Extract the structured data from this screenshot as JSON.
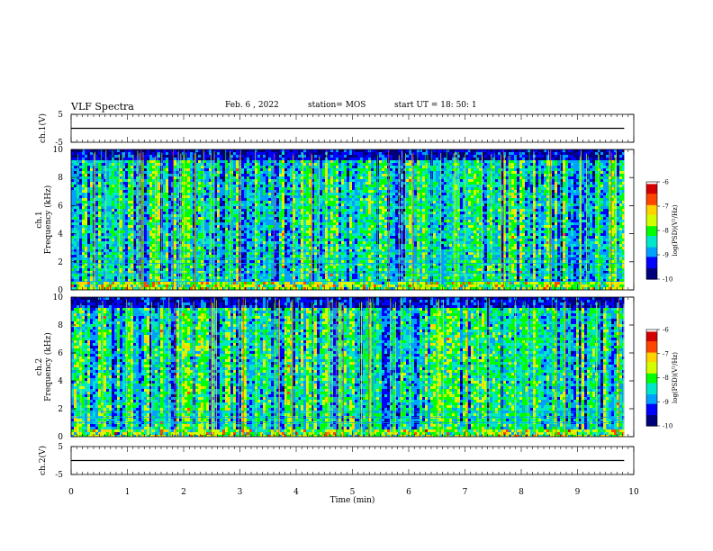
{
  "header": {
    "title": "VLF Spectra",
    "date": "Feb. 6 , 2022",
    "station": "station= MOS",
    "start_ut": "start  UT  =   18: 50: 1"
  },
  "colors": {
    "background_band": "#000000",
    "colormap": [
      "#00007a",
      "#0000ff",
      "#00a0ff",
      "#00e6c8",
      "#00ff00",
      "#d2ff00",
      "#ffd200",
      "#ff4600",
      "#d20000",
      "#ffffff"
    ]
  },
  "chart_data": [
    {
      "type": "line",
      "name": "ch1-waveform",
      "ylabel": "ch.1(V)",
      "ylim": [
        -5,
        5
      ],
      "yticks": [
        "5",
        "-5"
      ],
      "x": [
        0,
        9.83
      ],
      "y": [
        0,
        0
      ],
      "xlim": [
        0,
        10
      ]
    },
    {
      "type": "heatmap",
      "name": "ch1-spectrogram",
      "ylabel": "ch.1\nFrequency (kHz)",
      "ylim": [
        0,
        10
      ],
      "yticks": [
        "0",
        "2",
        "4",
        "6",
        "8",
        "10"
      ],
      "xlim": [
        0,
        10
      ],
      "x_extent": [
        0,
        9.83
      ],
      "colorbar": {
        "label": "log(PSD)(V²/Hz)",
        "range": [
          -10,
          -6
        ],
        "ticks": [
          "-6",
          "-7",
          "-8",
          "-9",
          "-10"
        ]
      },
      "seed": 11
    },
    {
      "type": "heatmap",
      "name": "ch2-spectrogram",
      "ylabel": "ch.2\nFrequency (kHz)",
      "ylim": [
        0,
        10
      ],
      "yticks": [
        "0",
        "2",
        "4",
        "6",
        "8",
        "10"
      ],
      "xlim": [
        0,
        10
      ],
      "x_extent": [
        0,
        9.83
      ],
      "colorbar": {
        "label": "log(PSD)(V²/Hz)",
        "range": [
          -10,
          -6
        ],
        "ticks": [
          "-6",
          "-7",
          "-8",
          "-9",
          "-10"
        ]
      },
      "seed": 29
    },
    {
      "type": "line",
      "name": "ch2-waveform",
      "ylabel": "ch.2(V)",
      "ylim": [
        -5,
        5
      ],
      "yticks": [
        "5",
        "-5"
      ],
      "x": [
        0,
        9.83
      ],
      "y": [
        0,
        0
      ],
      "xlim": [
        0,
        10
      ]
    }
  ],
  "xaxis": {
    "label": "Time (min)",
    "ticks": [
      "0",
      "1",
      "2",
      "3",
      "4",
      "5",
      "6",
      "7",
      "8",
      "9",
      "10"
    ]
  }
}
